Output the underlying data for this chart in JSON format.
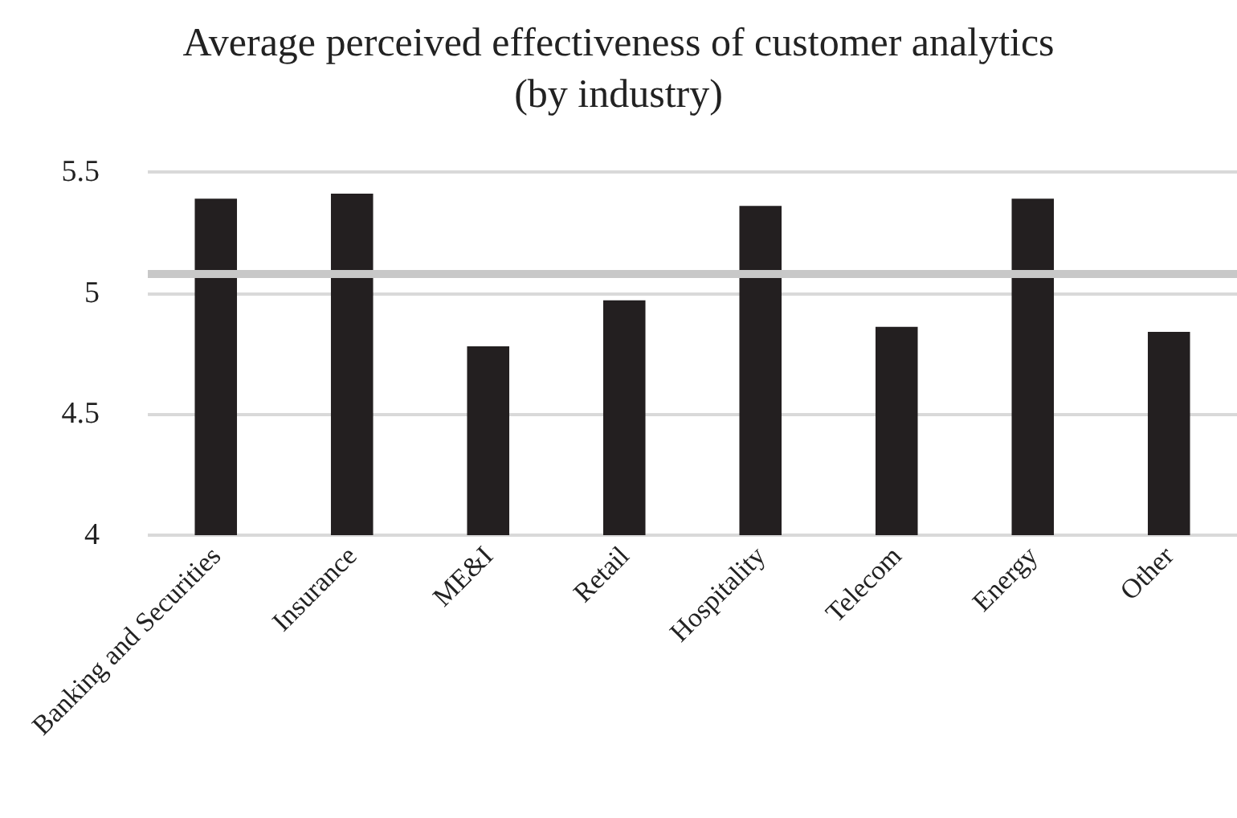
{
  "chart_data": {
    "type": "bar",
    "title": "Average perceived effectiveness of customer analytics\n(by industry)",
    "categories": [
      "Banking and Securities",
      "Insurance",
      "ME&I",
      "Retail",
      "Hospitality",
      "Telecom",
      "Energy",
      "Other"
    ],
    "values": [
      5.39,
      5.41,
      4.78,
      4.97,
      5.36,
      4.86,
      5.39,
      4.84
    ],
    "color": "#231f20",
    "ylim": [
      4,
      5.5
    ],
    "yticks": [
      4,
      4.5,
      5,
      5.5
    ],
    "grid": "y",
    "ref_lines": [
      {
        "axis": "y",
        "value": 5.08,
        "color": "#c8c8c8"
      }
    ]
  }
}
